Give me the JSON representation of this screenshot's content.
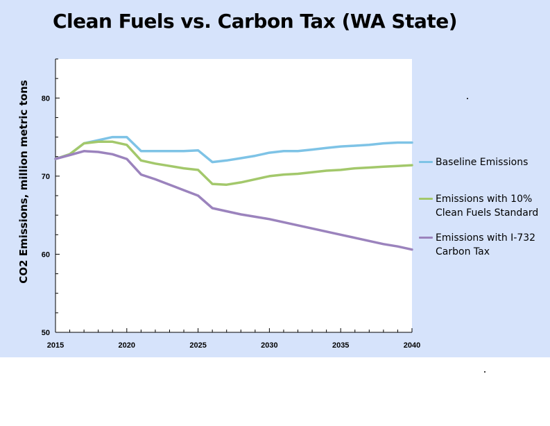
{
  "chart_data": {
    "type": "line",
    "title": "Clean Fuels vs. Carbon Tax (WA State)",
    "ylabel": "CO2 Emissions, million metric tons",
    "xlabel": "",
    "xlim": [
      2015,
      2040
    ],
    "ylim": [
      50,
      85
    ],
    "x_ticks": [
      2015,
      2020,
      2025,
      2030,
      2035,
      2040
    ],
    "y_ticks": [
      50,
      60,
      70,
      80
    ],
    "y_minor_step": 2.5,
    "grid": false,
    "legend_position": "right",
    "x": [
      2015,
      2016,
      2017,
      2018,
      2019,
      2020,
      2021,
      2022,
      2023,
      2024,
      2025,
      2026,
      2027,
      2028,
      2029,
      2030,
      2031,
      2032,
      2033,
      2034,
      2035,
      2036,
      2037,
      2038,
      2039,
      2040
    ],
    "series": [
      {
        "name": "Baseline Emissions",
        "color": "#7ec3e6",
        "values": [
          72.2,
          72.8,
          74.2,
          74.6,
          75.0,
          75.0,
          73.2,
          73.2,
          73.2,
          73.2,
          73.3,
          71.8,
          72.0,
          72.3,
          72.6,
          73.0,
          73.2,
          73.2,
          73.4,
          73.6,
          73.8,
          73.9,
          74.0,
          74.2,
          74.3,
          74.3
        ]
      },
      {
        "name": "Emissions with 10% Clean Fuels Standard",
        "color": "#a3c86b",
        "values": [
          72.2,
          72.8,
          74.2,
          74.4,
          74.4,
          74.0,
          72.0,
          71.6,
          71.3,
          71.0,
          70.8,
          69.0,
          68.9,
          69.2,
          69.6,
          70.0,
          70.2,
          70.3,
          70.5,
          70.7,
          70.8,
          71.0,
          71.1,
          71.2,
          71.3,
          71.4
        ]
      },
      {
        "name": "Emissions with I-732 Carbon Tax",
        "color": "#9b83bd",
        "values": [
          72.2,
          72.7,
          73.2,
          73.1,
          72.8,
          72.2,
          70.2,
          69.6,
          68.9,
          68.2,
          67.5,
          65.9,
          65.5,
          65.1,
          64.8,
          64.5,
          64.1,
          63.7,
          63.3,
          62.9,
          62.5,
          62.1,
          61.7,
          61.3,
          61.0,
          60.6
        ]
      }
    ]
  }
}
